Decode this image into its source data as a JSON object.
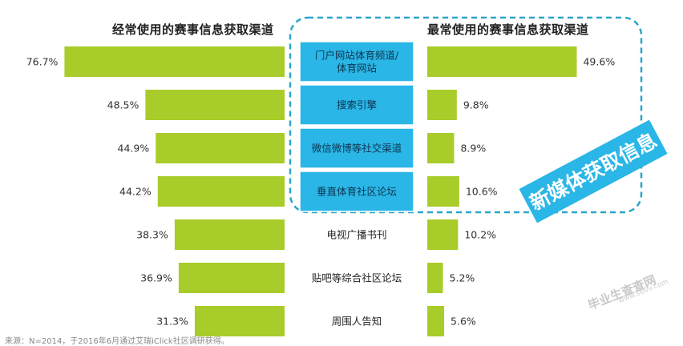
{
  "chart_data": {
    "type": "bar",
    "left_title": "经常使用的赛事信息获取渠道",
    "right_title": "最常使用的赛事信息获取渠道",
    "categories": [
      "门户网站体育频道/\n体育网站",
      "搜索引擎",
      "微信微博等社交渠道",
      "垂直体育社区论坛",
      "电视广播书刊",
      "贴吧等综合社区论坛",
      "周围人告知"
    ],
    "left_values": [
      76.7,
      48.5,
      44.9,
      44.2,
      38.3,
      36.9,
      31.3
    ],
    "right_values": [
      49.6,
      9.8,
      8.9,
      10.6,
      10.2,
      5.2,
      5.6
    ],
    "value_suffix": "%",
    "highlight_label": "新媒体获取信息",
    "highlight_count": 4,
    "bar_color": "#a8cc2a",
    "highlight_fill": "#2ab6e6",
    "highlight_border": "#2aa6c9",
    "badge_color": "#2ab6e6"
  },
  "footer": {
    "source": "来源：N=2014，于2016年6月通过艾瑞iClick社区调研获得。",
    "watermark": "毕业生查查网",
    "watermark_sub": "www.s6vv.com"
  }
}
